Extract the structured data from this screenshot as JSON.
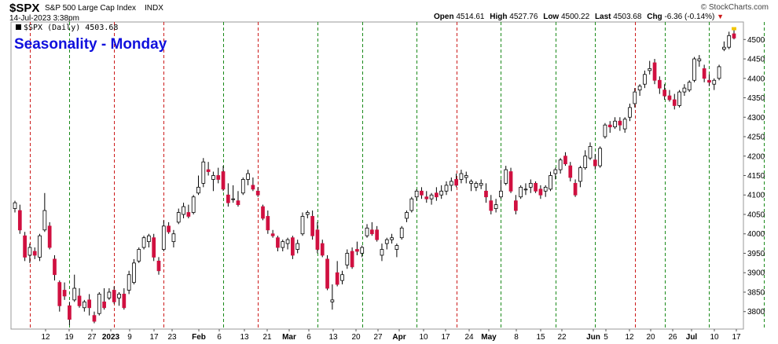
{
  "header": {
    "symbol": "$SPX",
    "description": "S&P 500 Large Cap Index",
    "exchange": "INDX",
    "date": "14-Jul-2023 3:38pm",
    "copyright": "© StockCharts.com"
  },
  "quote": {
    "open_label": "Open",
    "open": "4514.61",
    "high_label": "High",
    "high": "4527.76",
    "low_label": "Low",
    "low": "4500.22",
    "last_label": "Last",
    "last": "4503.68",
    "chg_label": "Chg",
    "chg": "-6.36 (-0.14%)"
  },
  "legend": {
    "text": "$SPX (Daily) 4503.68"
  },
  "overlay_title": "Seasonality - Monday",
  "colors": {
    "up": "#ffffff",
    "down": "#d01040",
    "accent_black": "#000000",
    "green_line": "#1a8a1a",
    "red_line": "#cc1a1a",
    "title_blue": "#1010dd",
    "last_marker": "#f2c500"
  },
  "chart_data": {
    "type": "candlestick",
    "x_ticks": [
      "12",
      "19",
      "27",
      "2023",
      "9",
      "17",
      "23",
      "Feb",
      "6",
      "13",
      "21",
      "Mar",
      "6",
      "13",
      "20",
      "27",
      "Apr",
      "10",
      "17",
      "24",
      "May",
      "8",
      "15",
      "22",
      "Jun",
      "5",
      "12",
      "20",
      "26",
      "Jul",
      "10",
      "17"
    ],
    "y_ticks": [
      3800,
      3850,
      3900,
      3950,
      4000,
      4050,
      4100,
      4150,
      4200,
      4250,
      4300,
      4350,
      4400,
      4450,
      4500
    ],
    "ylim": [
      3755,
      4545
    ],
    "last_value": 4503.68,
    "candles": [
      {
        "o": 4065,
        "h": 4085,
        "l": 4055,
        "c": 4080
      },
      {
        "o": 4060,
        "h": 4075,
        "l": 4000,
        "c": 4010
      },
      {
        "o": 3995,
        "h": 4005,
        "l": 3930,
        "c": 3940
      },
      {
        "o": 3945,
        "h": 3975,
        "l": 3925,
        "c": 3965
      },
      {
        "o": 3955,
        "h": 3965,
        "l": 3935,
        "c": 3945
      },
      {
        "o": 3940,
        "h": 4000,
        "l": 3930,
        "c": 3995
      },
      {
        "o": 4010,
        "h": 4105,
        "l": 4005,
        "c": 4060
      },
      {
        "o": 4020,
        "h": 4030,
        "l": 3960,
        "c": 3965
      },
      {
        "o": 3935,
        "h": 3945,
        "l": 3880,
        "c": 3895
      },
      {
        "o": 3875,
        "h": 3880,
        "l": 3800,
        "c": 3815
      },
      {
        "o": 3855,
        "h": 3875,
        "l": 3830,
        "c": 3840
      },
      {
        "o": 3815,
        "h": 3825,
        "l": 3765,
        "c": 3780
      },
      {
        "o": 3830,
        "h": 3895,
        "l": 3825,
        "c": 3860
      },
      {
        "o": 3840,
        "h": 3860,
        "l": 3810,
        "c": 3815
      },
      {
        "o": 3810,
        "h": 3830,
        "l": 3800,
        "c": 3825
      },
      {
        "o": 3830,
        "h": 3845,
        "l": 3790,
        "c": 3810
      },
      {
        "o": 3790,
        "h": 3800,
        "l": 3770,
        "c": 3775
      },
      {
        "o": 3795,
        "h": 3850,
        "l": 3790,
        "c": 3845
      },
      {
        "o": 3825,
        "h": 3860,
        "l": 3805,
        "c": 3810
      },
      {
        "o": 3835,
        "h": 3860,
        "l": 3830,
        "c": 3850
      },
      {
        "o": 3855,
        "h": 3865,
        "l": 3820,
        "c": 3825
      },
      {
        "o": 3835,
        "h": 3850,
        "l": 3815,
        "c": 3845
      },
      {
        "o": 3845,
        "h": 3860,
        "l": 3805,
        "c": 3810
      },
      {
        "o": 3855,
        "h": 3905,
        "l": 3845,
        "c": 3895
      },
      {
        "o": 3875,
        "h": 3935,
        "l": 3870,
        "c": 3925
      },
      {
        "o": 3930,
        "h": 3965,
        "l": 3925,
        "c": 3960
      },
      {
        "o": 3965,
        "h": 3995,
        "l": 3960,
        "c": 3990
      },
      {
        "o": 3980,
        "h": 4000,
        "l": 3965,
        "c": 3995
      },
      {
        "o": 3990,
        "h": 4000,
        "l": 3930,
        "c": 3940
      },
      {
        "o": 3930,
        "h": 3940,
        "l": 3895,
        "c": 3905
      },
      {
        "o": 3960,
        "h": 4035,
        "l": 3955,
        "c": 4020
      },
      {
        "o": 4020,
        "h": 4030,
        "l": 4000,
        "c": 4005
      },
      {
        "o": 3980,
        "h": 4010,
        "l": 3965,
        "c": 4000
      },
      {
        "o": 4030,
        "h": 4065,
        "l": 4025,
        "c": 4055
      },
      {
        "o": 4050,
        "h": 4080,
        "l": 4040,
        "c": 4070
      },
      {
        "o": 4055,
        "h": 4075,
        "l": 4040,
        "c": 4045
      },
      {
        "o": 4055,
        "h": 4100,
        "l": 4050,
        "c": 4095
      },
      {
        "o": 4105,
        "h": 4150,
        "l": 4100,
        "c": 4120
      },
      {
        "o": 4130,
        "h": 4195,
        "l": 4120,
        "c": 4185
      },
      {
        "o": 4165,
        "h": 4185,
        "l": 4150,
        "c": 4160
      },
      {
        "o": 4140,
        "h": 4160,
        "l": 4110,
        "c": 4150
      },
      {
        "o": 4150,
        "h": 4170,
        "l": 4130,
        "c": 4140
      },
      {
        "o": 4160,
        "h": 4175,
        "l": 4110,
        "c": 4115
      },
      {
        "o": 4100,
        "h": 4130,
        "l": 4070,
        "c": 4080
      },
      {
        "o": 4090,
        "h": 4125,
        "l": 4080,
        "c": 4090
      },
      {
        "o": 4085,
        "h": 4110,
        "l": 4070,
        "c": 4075
      },
      {
        "o": 4105,
        "h": 4145,
        "l": 4100,
        "c": 4140
      },
      {
        "o": 4140,
        "h": 4165,
        "l": 4125,
        "c": 4155
      },
      {
        "o": 4125,
        "h": 4145,
        "l": 4110,
        "c": 4115
      },
      {
        "o": 4110,
        "h": 4120,
        "l": 4095,
        "c": 4100
      },
      {
        "o": 4070,
        "h": 4075,
        "l": 4035,
        "c": 4040
      },
      {
        "o": 4045,
        "h": 4060,
        "l": 4000,
        "c": 4010
      },
      {
        "o": 4000,
        "h": 4010,
        "l": 3990,
        "c": 3995
      },
      {
        "o": 3990,
        "h": 3995,
        "l": 3955,
        "c": 3965
      },
      {
        "o": 3965,
        "h": 3985,
        "l": 3955,
        "c": 3980
      },
      {
        "o": 3975,
        "h": 3990,
        "l": 3960,
        "c": 3985
      },
      {
        "o": 3990,
        "h": 3995,
        "l": 3935,
        "c": 3945
      },
      {
        "o": 3960,
        "h": 3985,
        "l": 3950,
        "c": 3975
      },
      {
        "o": 4000,
        "h": 4055,
        "l": 3995,
        "c": 4045
      },
      {
        "o": 4050,
        "h": 4060,
        "l": 4040,
        "c": 4055
      },
      {
        "o": 4045,
        "h": 4060,
        "l": 3985,
        "c": 3995
      },
      {
        "o": 4010,
        "h": 4030,
        "l": 3950,
        "c": 3960
      },
      {
        "o": 3975,
        "h": 3985,
        "l": 3940,
        "c": 3945
      },
      {
        "o": 3935,
        "h": 3945,
        "l": 3855,
        "c": 3860
      },
      {
        "o": 3825,
        "h": 3870,
        "l": 3805,
        "c": 3830
      },
      {
        "o": 3900,
        "h": 3930,
        "l": 3865,
        "c": 3870
      },
      {
        "o": 3880,
        "h": 3905,
        "l": 3870,
        "c": 3895
      },
      {
        "o": 3920,
        "h": 3960,
        "l": 3910,
        "c": 3950
      },
      {
        "o": 3955,
        "h": 3965,
        "l": 3910,
        "c": 3915
      },
      {
        "o": 3960,
        "h": 3980,
        "l": 3945,
        "c": 3955
      },
      {
        "o": 3950,
        "h": 3970,
        "l": 3940,
        "c": 3965
      },
      {
        "o": 3995,
        "h": 4025,
        "l": 3990,
        "c": 4015
      },
      {
        "o": 4010,
        "h": 4030,
        "l": 3995,
        "c": 4000
      },
      {
        "o": 4010,
        "h": 4020,
        "l": 3980,
        "c": 3985
      },
      {
        "o": 3945,
        "h": 3975,
        "l": 3930,
        "c": 3960
      },
      {
        "o": 3975,
        "h": 3990,
        "l": 3960,
        "c": 3985
      },
      {
        "o": 3985,
        "h": 4000,
        "l": 3975,
        "c": 3990
      },
      {
        "o": 3960,
        "h": 3975,
        "l": 3940,
        "c": 3970
      },
      {
        "o": 3990,
        "h": 4020,
        "l": 3985,
        "c": 4015
      },
      {
        "o": 4040,
        "h": 4060,
        "l": 4030,
        "c": 4055
      },
      {
        "o": 4060,
        "h": 4095,
        "l": 4055,
        "c": 4090
      },
      {
        "o": 4095,
        "h": 4115,
        "l": 4085,
        "c": 4110
      },
      {
        "o": 4110,
        "h": 4120,
        "l": 4090,
        "c": 4100
      },
      {
        "o": 4095,
        "h": 4110,
        "l": 4080,
        "c": 4090
      },
      {
        "o": 4090,
        "h": 4105,
        "l": 4075,
        "c": 4100
      },
      {
        "o": 4105,
        "h": 4120,
        "l": 4085,
        "c": 4095
      },
      {
        "o": 4100,
        "h": 4125,
        "l": 4090,
        "c": 4110
      },
      {
        "o": 4110,
        "h": 4135,
        "l": 4100,
        "c": 4125
      },
      {
        "o": 4125,
        "h": 4145,
        "l": 4110,
        "c": 4135
      },
      {
        "o": 4140,
        "h": 4155,
        "l": 4120,
        "c": 4125
      },
      {
        "o": 4140,
        "h": 4165,
        "l": 4130,
        "c": 4155
      },
      {
        "o": 4145,
        "h": 4160,
        "l": 4130,
        "c": 4150
      },
      {
        "o": 4130,
        "h": 4140,
        "l": 4110,
        "c": 4135
      },
      {
        "o": 4120,
        "h": 4135,
        "l": 4110,
        "c": 4130
      },
      {
        "o": 4125,
        "h": 4140,
        "l": 4115,
        "c": 4130
      },
      {
        "o": 4110,
        "h": 4130,
        "l": 4080,
        "c": 4095
      },
      {
        "o": 4085,
        "h": 4100,
        "l": 4050,
        "c": 4060
      },
      {
        "o": 4065,
        "h": 4090,
        "l": 4055,
        "c": 4075
      },
      {
        "o": 4095,
        "h": 4140,
        "l": 4090,
        "c": 4110
      },
      {
        "o": 4130,
        "h": 4175,
        "l": 4125,
        "c": 4165
      },
      {
        "o": 4160,
        "h": 4170,
        "l": 4105,
        "c": 4110
      },
      {
        "o": 4085,
        "h": 4100,
        "l": 4050,
        "c": 4060
      },
      {
        "o": 4095,
        "h": 4125,
        "l": 4090,
        "c": 4120
      },
      {
        "o": 4115,
        "h": 4130,
        "l": 4100,
        "c": 4115
      },
      {
        "o": 4120,
        "h": 4140,
        "l": 4105,
        "c": 4130
      },
      {
        "o": 4130,
        "h": 4135,
        "l": 4105,
        "c": 4110
      },
      {
        "o": 4115,
        "h": 4125,
        "l": 4090,
        "c": 4100
      },
      {
        "o": 4110,
        "h": 4125,
        "l": 4095,
        "c": 4120
      },
      {
        "o": 4115,
        "h": 4160,
        "l": 4110,
        "c": 4150
      },
      {
        "o": 4155,
        "h": 4170,
        "l": 4140,
        "c": 4165
      },
      {
        "o": 4165,
        "h": 4195,
        "l": 4155,
        "c": 4190
      },
      {
        "o": 4200,
        "h": 4210,
        "l": 4175,
        "c": 4180
      },
      {
        "o": 4175,
        "h": 4185,
        "l": 4135,
        "c": 4145
      },
      {
        "o": 4130,
        "h": 4140,
        "l": 4095,
        "c": 4100
      },
      {
        "o": 4135,
        "h": 4175,
        "l": 4120,
        "c": 4170
      },
      {
        "o": 4170,
        "h": 4215,
        "l": 4165,
        "c": 4200
      },
      {
        "o": 4195,
        "h": 4235,
        "l": 4190,
        "c": 4225
      },
      {
        "o": 4190,
        "h": 4205,
        "l": 4165,
        "c": 4175
      },
      {
        "o": 4175,
        "h": 4225,
        "l": 4170,
        "c": 4220
      },
      {
        "o": 4250,
        "h": 4285,
        "l": 4245,
        "c": 4280
      },
      {
        "o": 4280,
        "h": 4290,
        "l": 4260,
        "c": 4275
      },
      {
        "o": 4275,
        "h": 4300,
        "l": 4270,
        "c": 4290
      },
      {
        "o": 4290,
        "h": 4300,
        "l": 4265,
        "c": 4280
      },
      {
        "o": 4270,
        "h": 4300,
        "l": 4260,
        "c": 4295
      },
      {
        "o": 4300,
        "h": 4335,
        "l": 4290,
        "c": 4325
      },
      {
        "o": 4335,
        "h": 4375,
        "l": 4325,
        "c": 4365
      },
      {
        "o": 4370,
        "h": 4385,
        "l": 4355,
        "c": 4380
      },
      {
        "o": 4385,
        "h": 4420,
        "l": 4375,
        "c": 4410
      },
      {
        "o": 4420,
        "h": 4445,
        "l": 4410,
        "c": 4425
      },
      {
        "o": 4440,
        "h": 4450,
        "l": 4385,
        "c": 4395
      },
      {
        "o": 4395,
        "h": 4405,
        "l": 4360,
        "c": 4375
      },
      {
        "o": 4370,
        "h": 4385,
        "l": 4345,
        "c": 4355
      },
      {
        "o": 4355,
        "h": 4370,
        "l": 4340,
        "c": 4345
      },
      {
        "o": 4345,
        "h": 4360,
        "l": 4320,
        "c": 4330
      },
      {
        "o": 4330,
        "h": 4370,
        "l": 4325,
        "c": 4365
      },
      {
        "o": 4365,
        "h": 4385,
        "l": 4355,
        "c": 4375
      },
      {
        "o": 4370,
        "h": 4395,
        "l": 4365,
        "c": 4390
      },
      {
        "o": 4395,
        "h": 4455,
        "l": 4390,
        "c": 4450
      },
      {
        "o": 4445,
        "h": 4460,
        "l": 4430,
        "c": 4450
      },
      {
        "o": 4425,
        "h": 4435,
        "l": 4390,
        "c": 4400
      },
      {
        "o": 4395,
        "h": 4410,
        "l": 4380,
        "c": 4390
      },
      {
        "o": 4385,
        "h": 4400,
        "l": 4370,
        "c": 4395
      },
      {
        "o": 4400,
        "h": 4435,
        "l": 4395,
        "c": 4430
      },
      {
        "o": 4475,
        "h": 4495,
        "l": 4470,
        "c": 4480
      },
      {
        "o": 4480,
        "h": 4520,
        "l": 4475,
        "c": 4510
      },
      {
        "o": 4514.61,
        "h": 4527.76,
        "l": 4500.22,
        "c": 4503.68
      }
    ],
    "vlines": [
      {
        "i": 3,
        "c": "red"
      },
      {
        "i": 11,
        "c": "green"
      },
      {
        "i": 20,
        "c": "red"
      },
      {
        "i": 30,
        "c": "red"
      },
      {
        "i": 42,
        "c": "green"
      },
      {
        "i": 49,
        "c": "red"
      },
      {
        "i": 61,
        "c": "green"
      },
      {
        "i": 70,
        "c": "green"
      },
      {
        "i": 81,
        "c": "green"
      },
      {
        "i": 89,
        "c": "red"
      },
      {
        "i": 98,
        "c": "green"
      },
      {
        "i": 109,
        "c": "green"
      },
      {
        "i": 117,
        "c": "green"
      },
      {
        "i": 125,
        "c": "red"
      },
      {
        "i": 131,
        "c": "green"
      },
      {
        "i": 140,
        "c": "green"
      },
      {
        "i": 151,
        "c": "green"
      },
      {
        "i": 162,
        "c": "red"
      },
      {
        "i": 170,
        "c": "green"
      },
      {
        "i": 178,
        "c": "green"
      },
      {
        "i": 186,
        "c": "green"
      },
      {
        "i": 195,
        "c": "red"
      },
      {
        "i": 205,
        "c": "red"
      },
      {
        "i": 216,
        "c": "green"
      },
      {
        "i": 224,
        "c": "green"
      },
      {
        "i": 236,
        "c": "green"
      },
      {
        "i": 244,
        "c": "green"
      },
      {
        "i": 252,
        "c": "red"
      },
      {
        "i": 262,
        "c": "green"
      },
      {
        "i": 270,
        "c": "red"
      },
      {
        "i": 279,
        "c": "red"
      },
      {
        "i": 287,
        "c": "green"
      },
      {
        "i": 294,
        "c": "green"
      },
      {
        "i": 302,
        "c": "green"
      },
      {
        "i": 310,
        "c": "red"
      },
      {
        "i": 318,
        "c": "green"
      },
      {
        "i": 326,
        "c": "green"
      },
      {
        "i": 333,
        "c": "red"
      },
      {
        "i": 340,
        "c": "green"
      },
      {
        "i": 348,
        "c": "green"
      },
      {
        "i": 357,
        "c": "red"
      },
      {
        "i": 366,
        "c": "green"
      },
      {
        "i": 374,
        "c": "green"
      },
      {
        "i": 382,
        "c": "red"
      },
      {
        "i": 391,
        "c": "green"
      },
      {
        "i": 398,
        "c": "red"
      },
      {
        "i": 406,
        "c": "green"
      }
    ]
  }
}
